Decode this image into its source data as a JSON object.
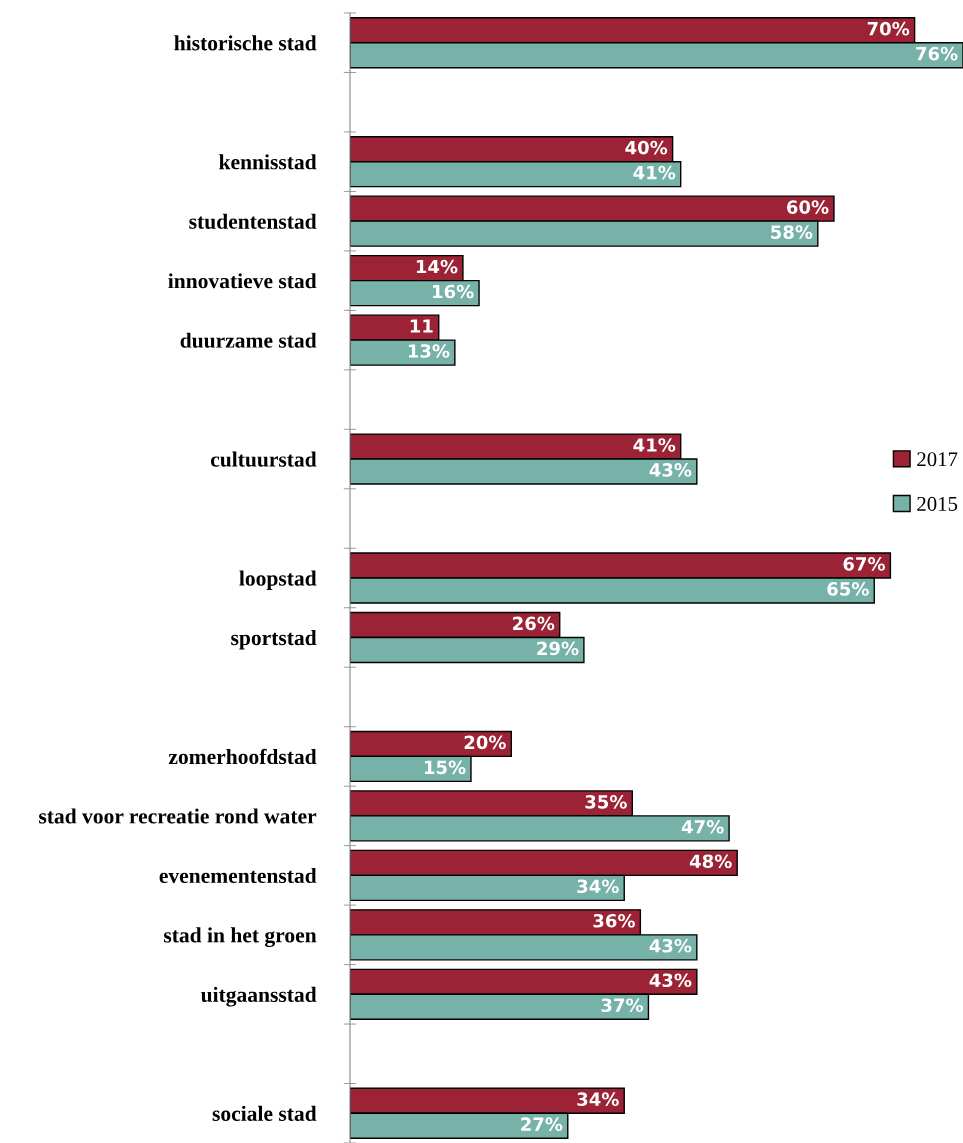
{
  "chart_data": {
    "type": "bar",
    "orientation": "horizontal",
    "xlim": [
      0,
      76
    ],
    "tick_labels": "y",
    "legend": "right",
    "grid": false,
    "categories": [
      "historische stad",
      null,
      "kennisstad",
      "studentenstad",
      "innovatieve stad",
      "duurzame stad",
      null,
      "cultuurstad",
      null,
      "loopstad",
      "sportstad",
      null,
      "zomerhoofdstad",
      "stad voor recreatie rond water",
      "evenementenstad",
      "stad in het groen",
      "uitgaansstad",
      null,
      "sociale stad"
    ],
    "series": [
      {
        "name": "2017",
        "color": "#9b2335",
        "values": [
          70,
          null,
          40,
          60,
          14,
          11,
          null,
          41,
          null,
          67,
          26,
          null,
          20,
          35,
          48,
          36,
          43,
          null,
          34
        ],
        "value_labels": [
          "70%",
          null,
          "40%",
          "60%",
          "14%",
          "11",
          null,
          "41%",
          null,
          "67%",
          "26%",
          null,
          "20%",
          "35%",
          "48%",
          "36%",
          "43%",
          null,
          "34%"
        ]
      },
      {
        "name": "2015",
        "color": "#76b2a8",
        "values": [
          76,
          null,
          41,
          58,
          16,
          13,
          null,
          43,
          null,
          65,
          29,
          null,
          15,
          47,
          34,
          43,
          37,
          null,
          27
        ],
        "value_labels": [
          "76%",
          null,
          "41%",
          "58%",
          "16%",
          "13%",
          null,
          "43%",
          null,
          "65%",
          "29%",
          null,
          "15%",
          "47%",
          "34%",
          "43%",
          "37%",
          null,
          "27%"
        ]
      }
    ]
  }
}
